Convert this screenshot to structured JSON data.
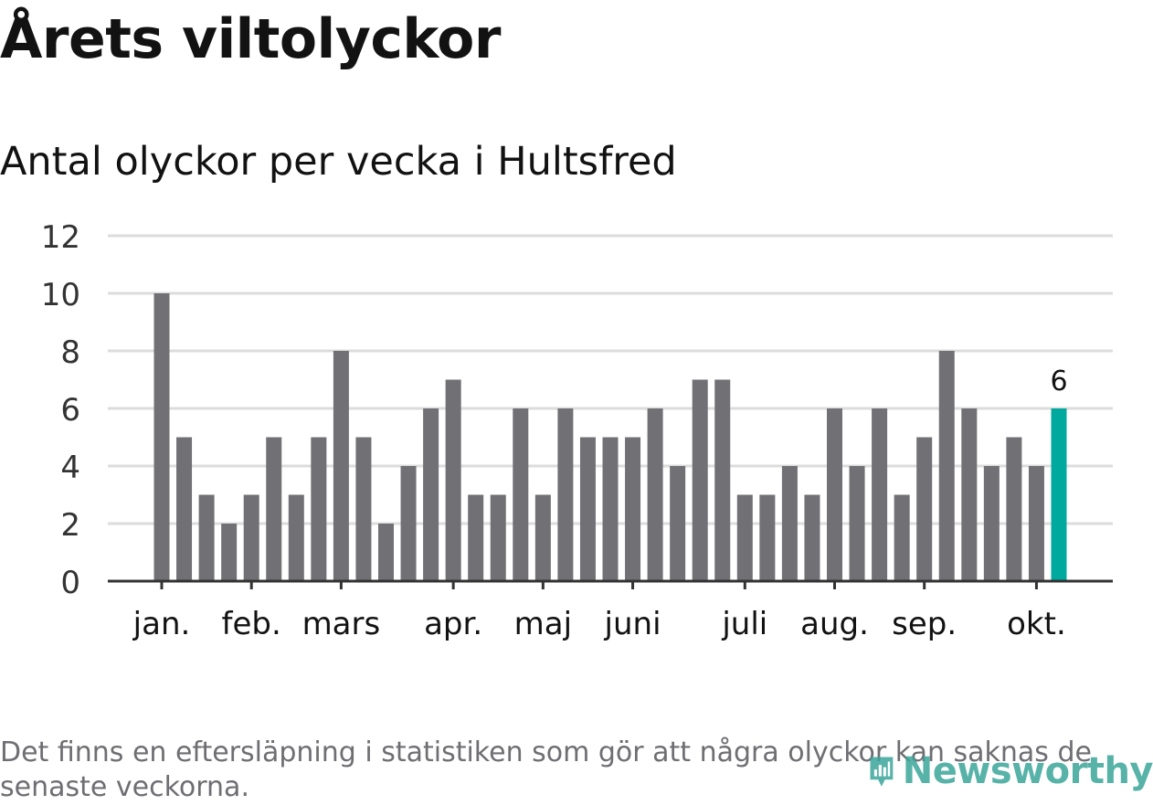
{
  "title": "Årets viltolyckor",
  "subtitle": "Antal olyckor per vecka i Hultsfred",
  "footnote": "Det finns en eftersläpning i statistiken som gör att några olyckor kan saknas de senaste veckorna.",
  "brand": {
    "name": "Newsworthy",
    "icon": "bar-chart-pin-icon"
  },
  "colors": {
    "bar": "#707075",
    "highlight": "#00a99d",
    "grid": "#dcdcdc",
    "axis": "#333333",
    "brand": "#3aa59a"
  },
  "chart_data": {
    "type": "bar",
    "title": "Antal olyckor per vecka i Hultsfred",
    "xlabel": "",
    "ylabel": "",
    "ylim": [
      0,
      12
    ],
    "yticks": [
      0,
      2,
      4,
      6,
      8,
      10,
      12
    ],
    "grid": true,
    "values": [
      10,
      5,
      3,
      2,
      3,
      5,
      3,
      5,
      8,
      5,
      2,
      4,
      6,
      7,
      3,
      3,
      6,
      3,
      6,
      5,
      5,
      5,
      6,
      4,
      7,
      7,
      3,
      3,
      4,
      3,
      6,
      4,
      6,
      3,
      5,
      8,
      6,
      4,
      5,
      4,
      6
    ],
    "month_ticks": [
      {
        "label": "jan.",
        "bar_index": 0
      },
      {
        "label": "feb.",
        "bar_index": 4
      },
      {
        "label": "mars",
        "bar_index": 8
      },
      {
        "label": "apr.",
        "bar_index": 13
      },
      {
        "label": "maj",
        "bar_index": 17
      },
      {
        "label": "juni",
        "bar_index": 21
      },
      {
        "label": "juli",
        "bar_index": 26
      },
      {
        "label": "aug.",
        "bar_index": 30
      },
      {
        "label": "sep.",
        "bar_index": 34
      },
      {
        "label": "okt.",
        "bar_index": 39
      }
    ],
    "highlight_index": 40,
    "highlight_label": "6"
  }
}
